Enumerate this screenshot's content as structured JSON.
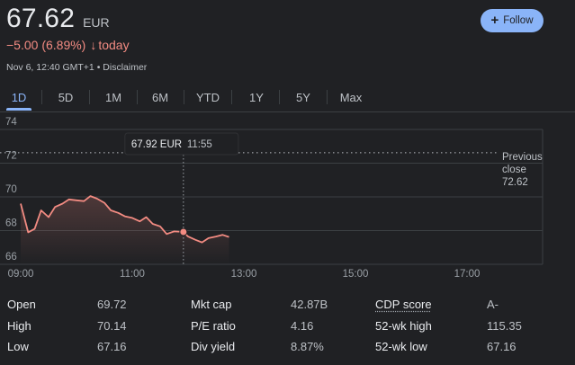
{
  "quote": {
    "price": "67.62",
    "currency": "EUR",
    "change": "−5.00 (6.89%)",
    "change_arrow": "↓",
    "period": "today",
    "timestamp": "Nov 6, 12:40 GMT+1",
    "separator": "•",
    "disclaimer": "Disclaimer"
  },
  "follow": {
    "icon": "plus-icon",
    "label": "Follow"
  },
  "tabs": [
    {
      "label": "1D",
      "active": true
    },
    {
      "label": "5D"
    },
    {
      "label": "1M"
    },
    {
      "label": "6M"
    },
    {
      "label": "YTD"
    },
    {
      "label": "1Y"
    },
    {
      "label": "5Y"
    },
    {
      "label": "Max"
    }
  ],
  "colors": {
    "accent": "#8ab4f8",
    "negative": "#f28b82",
    "background": "#202124",
    "gridline": "#3c4043"
  },
  "chart_data": {
    "type": "line",
    "ylim": [
      66,
      74
    ],
    "y_ticks": [
      "74",
      "72",
      "70",
      "68",
      "66"
    ],
    "x_ticks": [
      {
        "label": "09:00",
        "x": "09:00"
      },
      {
        "label": "11:00",
        "x": "11:00"
      },
      {
        "label": "13:00",
        "x": "13:00"
      },
      {
        "label": "15:00",
        "x": "15:00"
      },
      {
        "label": "17:00",
        "x": "17:00"
      }
    ],
    "xlim": [
      "09:00",
      "17:30"
    ],
    "grid": true,
    "previous_close": {
      "label": "Previous close",
      "value": "72.62"
    },
    "tooltip": {
      "price": "67.92 EUR",
      "time": "11:55"
    },
    "hover_point": {
      "x": "11:55",
      "y": 67.92
    },
    "series": [
      {
        "color": "#f28b82",
        "x": [
          "09:00",
          "09:08",
          "09:15",
          "09:22",
          "09:30",
          "09:37",
          "09:45",
          "09:52",
          "10:00",
          "10:08",
          "10:15",
          "10:22",
          "10:30",
          "10:37",
          "10:45",
          "10:52",
          "11:00",
          "11:08",
          "11:15",
          "11:22",
          "11:30",
          "11:37",
          "11:45",
          "11:55",
          "12:00",
          "12:08",
          "12:15",
          "12:22",
          "12:30",
          "12:37",
          "12:44"
        ],
        "values": [
          69.6,
          67.9,
          68.1,
          69.2,
          68.8,
          69.4,
          69.6,
          69.85,
          69.8,
          69.75,
          70.05,
          69.9,
          69.65,
          69.2,
          69.05,
          68.85,
          68.75,
          68.55,
          68.8,
          68.4,
          68.25,
          67.8,
          67.95,
          67.92,
          67.65,
          67.45,
          67.3,
          67.55,
          67.65,
          67.75,
          67.62
        ]
      }
    ]
  },
  "stats": {
    "rows": [
      {
        "l1": "Open",
        "v1": "69.72",
        "l2": "Mkt cap",
        "v2": "42.87B",
        "l3": "CDP score",
        "v3": "A-"
      },
      {
        "l1": "High",
        "v1": "70.14",
        "l2": "P/E ratio",
        "v2": "4.16",
        "l3": "52-wk high",
        "v3": "115.35"
      },
      {
        "l1": "Low",
        "v1": "67.16",
        "l2": "Div yield",
        "v2": "8.87%",
        "l3": "52-wk low",
        "v3": "67.16"
      }
    ]
  }
}
